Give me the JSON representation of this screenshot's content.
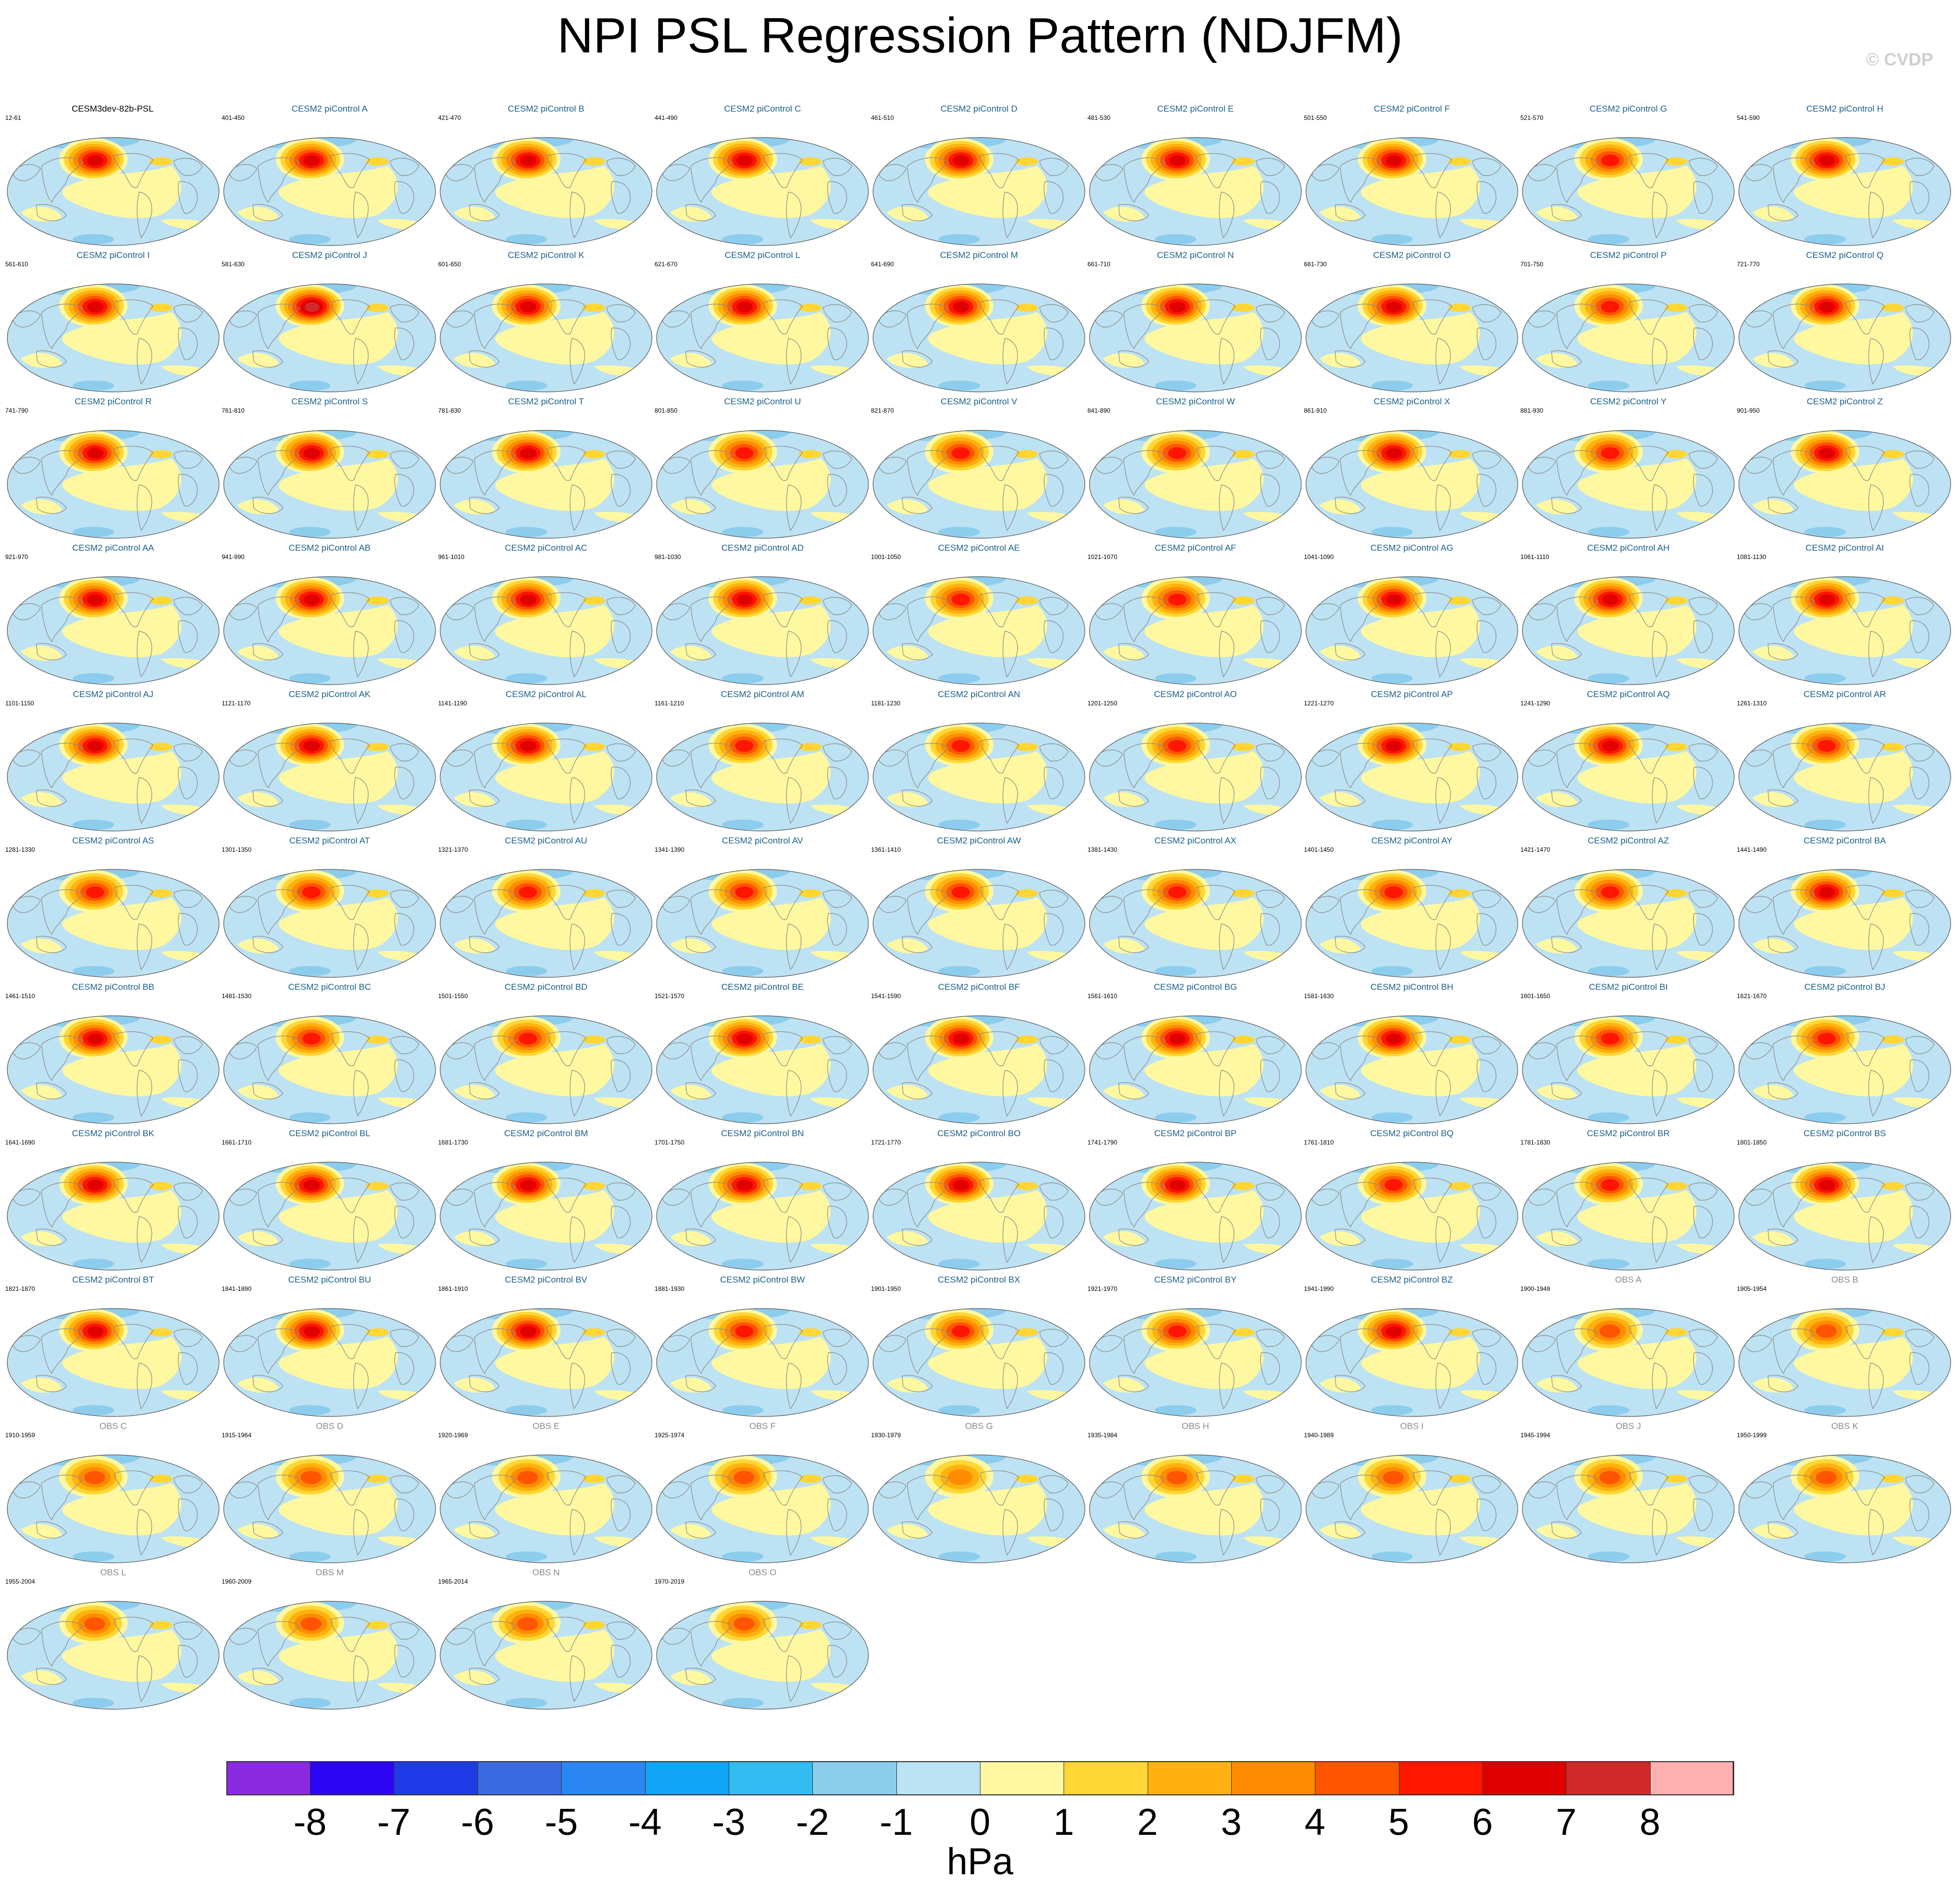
{
  "title": "NPI PSL Regression Pattern (NDJFM)",
  "credit": "© CVDP",
  "colorbar": {
    "units": "hPa",
    "levels": [
      "-8",
      "-7",
      "-6",
      "-5",
      "-4",
      "-3",
      "-2",
      "-1",
      "0",
      "1",
      "2",
      "3",
      "4",
      "5",
      "6",
      "7",
      "8"
    ],
    "colors": [
      "#8a2be2",
      "#2d05f5",
      "#1f3be8",
      "#3c6ae0",
      "#2a86f0",
      "#12a4f5",
      "#33bcf2",
      "#8ccdee",
      "#bde2f3",
      "#fff8a0",
      "#ffd633",
      "#ffb20f",
      "#ff8c00",
      "#ff5500",
      "#ff1500",
      "#e00000",
      "#d22a2a",
      "#ffb0b0"
    ],
    "range_min": -8,
    "range_max": 8
  },
  "chart_data": {
    "type": "map",
    "title": "NPI PSL Regression Pattern (NDJFM)",
    "variable": "PSL regression onto NPI",
    "season": "NDJFM",
    "units": "hPa",
    "projection": "Robinson (Pacific-centered)",
    "panels": [
      {
        "title": "CESM3dev-82b-PSL",
        "years": "12-61",
        "kind": "main",
        "peak_hPa": 6
      },
      {
        "title": "CESM2 piControl A",
        "years": "401-450",
        "kind": "member",
        "peak_hPa": 6
      },
      {
        "title": "CESM2 piControl B",
        "years": "421-470",
        "kind": "member",
        "peak_hPa": 6
      },
      {
        "title": "CESM2 piControl C",
        "years": "441-490",
        "kind": "member",
        "peak_hPa": 6
      },
      {
        "title": "CESM2 piControl D",
        "years": "461-510",
        "kind": "member",
        "peak_hPa": 6
      },
      {
        "title": "CESM2 piControl E",
        "years": "481-530",
        "kind": "member",
        "peak_hPa": 6
      },
      {
        "title": "CESM2 piControl F",
        "years": "501-550",
        "kind": "member",
        "peak_hPa": 6
      },
      {
        "title": "CESM2 piControl G",
        "years": "521-570",
        "kind": "member",
        "peak_hPa": 5
      },
      {
        "title": "CESM2 piControl H",
        "years": "541-590",
        "kind": "member",
        "peak_hPa": 6
      },
      {
        "title": "CESM2 piControl I",
        "years": "561-610",
        "kind": "member",
        "peak_hPa": 6
      },
      {
        "title": "CESM2 piControl J",
        "years": "581-630",
        "kind": "member",
        "peak_hPa": 7
      },
      {
        "title": "CESM2 piControl K",
        "years": "601-650",
        "kind": "member",
        "peak_hPa": 6
      },
      {
        "title": "CESM2 piControl L",
        "years": "621-670",
        "kind": "member",
        "peak_hPa": 6
      },
      {
        "title": "CESM2 piControl M",
        "years": "641-690",
        "kind": "member",
        "peak_hPa": 6
      },
      {
        "title": "CESM2 piControl N",
        "years": "661-710",
        "kind": "member",
        "peak_hPa": 6
      },
      {
        "title": "CESM2 piControl O",
        "years": "681-730",
        "kind": "member",
        "peak_hPa": 6
      },
      {
        "title": "CESM2 piControl P",
        "years": "701-750",
        "kind": "member",
        "peak_hPa": 5
      },
      {
        "title": "CESM2 piControl Q",
        "years": "721-770",
        "kind": "member",
        "peak_hPa": 6
      },
      {
        "title": "CESM2 piControl R",
        "years": "741-790",
        "kind": "member",
        "peak_hPa": 6
      },
      {
        "title": "CESM2 piControl S",
        "years": "761-810",
        "kind": "member",
        "peak_hPa": 6
      },
      {
        "title": "CESM2 piControl T",
        "years": "781-830",
        "kind": "member",
        "peak_hPa": 6
      },
      {
        "title": "CESM2 piControl U",
        "years": "801-850",
        "kind": "member",
        "peak_hPa": 5
      },
      {
        "title": "CESM2 piControl V",
        "years": "821-870",
        "kind": "member",
        "peak_hPa": 5
      },
      {
        "title": "CESM2 piControl W",
        "years": "841-890",
        "kind": "member",
        "peak_hPa": 5
      },
      {
        "title": "CESM2 piControl X",
        "years": "861-910",
        "kind": "member",
        "peak_hPa": 6
      },
      {
        "title": "CESM2 piControl Y",
        "years": "881-930",
        "kind": "member",
        "peak_hPa": 5
      },
      {
        "title": "CESM2 piControl Z",
        "years": "901-950",
        "kind": "member",
        "peak_hPa": 6
      },
      {
        "title": "CESM2 piControl AA",
        "years": "921-970",
        "kind": "member",
        "peak_hPa": 6
      },
      {
        "title": "CESM2 piControl AB",
        "years": "941-990",
        "kind": "member",
        "peak_hPa": 6
      },
      {
        "title": "CESM2 piControl AC",
        "years": "961-1010",
        "kind": "member",
        "peak_hPa": 6
      },
      {
        "title": "CESM2 piControl AD",
        "years": "981-1030",
        "kind": "member",
        "peak_hPa": 6
      },
      {
        "title": "CESM2 piControl AE",
        "years": "1001-1050",
        "kind": "member",
        "peak_hPa": 5
      },
      {
        "title": "CESM2 piControl AF",
        "years": "1021-1070",
        "kind": "member",
        "peak_hPa": 5
      },
      {
        "title": "CESM2 piControl AG",
        "years": "1041-1090",
        "kind": "member",
        "peak_hPa": 6
      },
      {
        "title": "CESM2 piControl AH",
        "years": "1061-1110",
        "kind": "member",
        "peak_hPa": 6
      },
      {
        "title": "CESM2 piControl AI",
        "years": "1081-1130",
        "kind": "member",
        "peak_hPa": 6
      },
      {
        "title": "CESM2 piControl AJ",
        "years": "1101-1150",
        "kind": "member",
        "peak_hPa": 6
      },
      {
        "title": "CESM2 piControl AK",
        "years": "1121-1170",
        "kind": "member",
        "peak_hPa": 6
      },
      {
        "title": "CESM2 piControl AL",
        "years": "1141-1190",
        "kind": "member",
        "peak_hPa": 6
      },
      {
        "title": "CESM2 piControl AM",
        "years": "1161-1210",
        "kind": "member",
        "peak_hPa": 5
      },
      {
        "title": "CESM2 piControl AN",
        "years": "1181-1230",
        "kind": "member",
        "peak_hPa": 5
      },
      {
        "title": "CESM2 piControl AO",
        "years": "1201-1250",
        "kind": "member",
        "peak_hPa": 5
      },
      {
        "title": "CESM2 piControl AP",
        "years": "1221-1270",
        "kind": "member",
        "peak_hPa": 6
      },
      {
        "title": "CESM2 piControl AQ",
        "years": "1241-1290",
        "kind": "member",
        "peak_hPa": 6
      },
      {
        "title": "CESM2 piControl AR",
        "years": "1261-1310",
        "kind": "member",
        "peak_hPa": 5
      },
      {
        "title": "CESM2 piControl AS",
        "years": "1281-1330",
        "kind": "member",
        "peak_hPa": 5
      },
      {
        "title": "CESM2 piControl AT",
        "years": "1301-1350",
        "kind": "member",
        "peak_hPa": 5
      },
      {
        "title": "CESM2 piControl AU",
        "years": "1321-1370",
        "kind": "member",
        "peak_hPa": 5
      },
      {
        "title": "CESM2 piControl AV",
        "years": "1341-1390",
        "kind": "member",
        "peak_hPa": 5
      },
      {
        "title": "CESM2 piControl AW",
        "years": "1361-1410",
        "kind": "member",
        "peak_hPa": 5
      },
      {
        "title": "CESM2 piControl AX",
        "years": "1381-1430",
        "kind": "member",
        "peak_hPa": 5
      },
      {
        "title": "CESM2 piControl AY",
        "years": "1401-1450",
        "kind": "member",
        "peak_hPa": 5
      },
      {
        "title": "CESM2 piControl AZ",
        "years": "1421-1470",
        "kind": "member",
        "peak_hPa": 5
      },
      {
        "title": "CESM2 piControl BA",
        "years": "1441-1490",
        "kind": "member",
        "peak_hPa": 6
      },
      {
        "title": "CESM2 piControl BB",
        "years": "1461-1510",
        "kind": "member",
        "peak_hPa": 6
      },
      {
        "title": "CESM2 piControl BC",
        "years": "1481-1530",
        "kind": "member",
        "peak_hPa": 5
      },
      {
        "title": "CESM2 piControl BD",
        "years": "1501-1550",
        "kind": "member",
        "peak_hPa": 5
      },
      {
        "title": "CESM2 piControl BE",
        "years": "1521-1570",
        "kind": "member",
        "peak_hPa": 6
      },
      {
        "title": "CESM2 piControl BF",
        "years": "1541-1590",
        "kind": "member",
        "peak_hPa": 6
      },
      {
        "title": "CESM2 piControl BG",
        "years": "1561-1610",
        "kind": "member",
        "peak_hPa": 6
      },
      {
        "title": "CESM2 piControl BH",
        "years": "1581-1630",
        "kind": "member",
        "peak_hPa": 6
      },
      {
        "title": "CESM2 piControl BI",
        "years": "1601-1650",
        "kind": "member",
        "peak_hPa": 5
      },
      {
        "title": "CESM2 piControl BJ",
        "years": "1621-1670",
        "kind": "member",
        "peak_hPa": 5
      },
      {
        "title": "CESM2 piControl BK",
        "years": "1641-1690",
        "kind": "member",
        "peak_hPa": 6
      },
      {
        "title": "CESM2 piControl BL",
        "years": "1661-1710",
        "kind": "member",
        "peak_hPa": 6
      },
      {
        "title": "CESM2 piControl BM",
        "years": "1681-1730",
        "kind": "member",
        "peak_hPa": 6
      },
      {
        "title": "CESM2 piControl BN",
        "years": "1701-1750",
        "kind": "member",
        "peak_hPa": 6
      },
      {
        "title": "CESM2 piControl BO",
        "years": "1721-1770",
        "kind": "member",
        "peak_hPa": 6
      },
      {
        "title": "CESM2 piControl BP",
        "years": "1741-1790",
        "kind": "member",
        "peak_hPa": 6
      },
      {
        "title": "CESM2 piControl BQ",
        "years": "1761-1810",
        "kind": "member",
        "peak_hPa": 5
      },
      {
        "title": "CESM2 piControl BR",
        "years": "1781-1830",
        "kind": "member",
        "peak_hPa": 5
      },
      {
        "title": "CESM2 piControl BS",
        "years": "1801-1850",
        "kind": "member",
        "peak_hPa": 6
      },
      {
        "title": "CESM2 piControl BT",
        "years": "1821-1870",
        "kind": "member",
        "peak_hPa": 6
      },
      {
        "title": "CESM2 piControl BU",
        "years": "1841-1890",
        "kind": "member",
        "peak_hPa": 6
      },
      {
        "title": "CESM2 piControl BV",
        "years": "1861-1910",
        "kind": "member",
        "peak_hPa": 6
      },
      {
        "title": "CESM2 piControl BW",
        "years": "1881-1930",
        "kind": "member",
        "peak_hPa": 5
      },
      {
        "title": "CESM2 piControl BX",
        "years": "1901-1950",
        "kind": "member",
        "peak_hPa": 5
      },
      {
        "title": "CESM2 piControl BY",
        "years": "1921-1970",
        "kind": "member",
        "peak_hPa": 5
      },
      {
        "title": "CESM2 piControl BZ",
        "years": "1941-1990",
        "kind": "member",
        "peak_hPa": 6
      },
      {
        "title": "OBS A",
        "years": "1900-1949",
        "kind": "obs",
        "peak_hPa": 4
      },
      {
        "title": "OBS B",
        "years": "1905-1954",
        "kind": "obs",
        "peak_hPa": 4
      },
      {
        "title": "OBS C",
        "years": "1910-1959",
        "kind": "obs",
        "peak_hPa": 4
      },
      {
        "title": "OBS D",
        "years": "1915-1964",
        "kind": "obs",
        "peak_hPa": 4
      },
      {
        "title": "OBS E",
        "years": "1920-1969",
        "kind": "obs",
        "peak_hPa": 4
      },
      {
        "title": "OBS F",
        "years": "1925-1974",
        "kind": "obs",
        "peak_hPa": 4
      },
      {
        "title": "OBS G",
        "years": "1930-1979",
        "kind": "obs",
        "peak_hPa": 3
      },
      {
        "title": "OBS H",
        "years": "1935-1984",
        "kind": "obs",
        "peak_hPa": 4
      },
      {
        "title": "OBS I",
        "years": "1940-1989",
        "kind": "obs",
        "peak_hPa": 4
      },
      {
        "title": "OBS J",
        "years": "1945-1994",
        "kind": "obs",
        "peak_hPa": 4
      },
      {
        "title": "OBS K",
        "years": "1950-1999",
        "kind": "obs",
        "peak_hPa": 4
      },
      {
        "title": "OBS L",
        "years": "1955-2004",
        "kind": "obs",
        "peak_hPa": 4
      },
      {
        "title": "OBS M",
        "years": "1960-2009",
        "kind": "obs",
        "peak_hPa": 4
      },
      {
        "title": "OBS N",
        "years": "1965-2014",
        "kind": "obs",
        "peak_hPa": 4
      },
      {
        "title": "OBS O",
        "years": "1970-2019",
        "kind": "obs",
        "peak_hPa": 4
      }
    ]
  },
  "title_colors": {
    "main": "#000000",
    "member": "#1a5f8a",
    "obs": "#8a8a8a"
  }
}
